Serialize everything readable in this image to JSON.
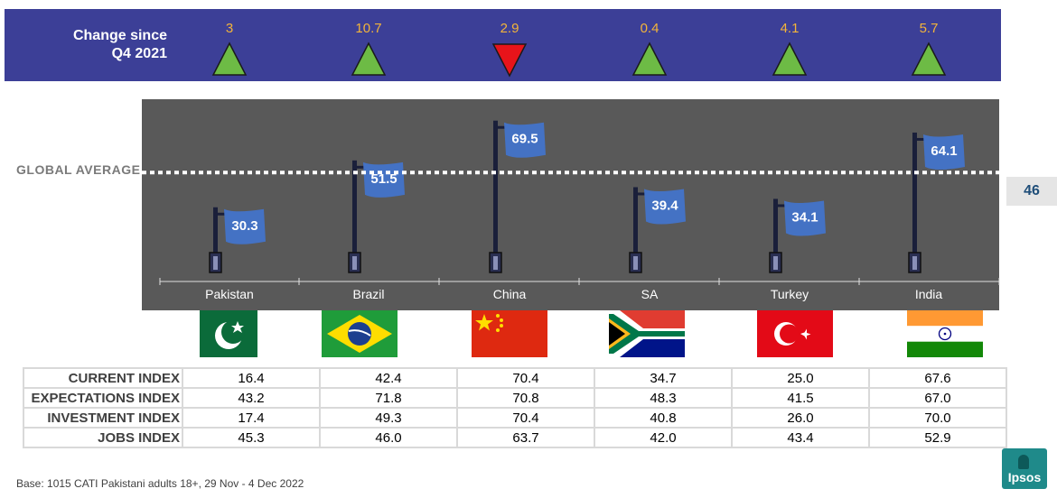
{
  "header": {
    "label_line1": "Change since",
    "label_line2": "Q4 2021",
    "changes": [
      {
        "value": "3",
        "direction": "up"
      },
      {
        "value": "10.7",
        "direction": "up"
      },
      {
        "value": "2.9",
        "direction": "down"
      },
      {
        "value": "0.4",
        "direction": "up"
      },
      {
        "value": "4.1",
        "direction": "up"
      },
      {
        "value": "5.7",
        "direction": "up"
      }
    ]
  },
  "colors": {
    "header_bg": "#3c3f97",
    "change_value": "#f3b43a",
    "up_triangle": "#6dbb45",
    "down_triangle": "#e8141a",
    "chart_bg": "#595959",
    "flag_blue": "#4472c4",
    "pole": "#1a1f3a"
  },
  "global_average": {
    "label": "GLOBAL AVERAGE",
    "value": "46"
  },
  "chart_data": {
    "type": "bar",
    "categories": [
      "Pakistan",
      "Brazil",
      "China",
      "SA",
      "Turkey",
      "India"
    ],
    "values": [
      30.3,
      51.5,
      69.5,
      39.4,
      34.1,
      64.1
    ],
    "value_labels": [
      "30.3",
      "51.5",
      "69.5",
      "39.4",
      "34.1",
      "64.1"
    ],
    "reference_line": 46,
    "ylim": [
      0,
      80
    ],
    "grid": false,
    "legend": "none",
    "mark_style": "flag on pole"
  },
  "flags": [
    "pakistan",
    "brazil",
    "china",
    "south-africa",
    "turkey",
    "india"
  ],
  "table": {
    "rows": [
      {
        "label": "CURRENT INDEX",
        "values": [
          "16.4",
          "42.4",
          "70.4",
          "34.7",
          "25.0",
          "67.6"
        ]
      },
      {
        "label": "EXPECTATIONS INDEX",
        "values": [
          "43.2",
          "71.8",
          "70.8",
          "48.3",
          "41.5",
          "67.0"
        ]
      },
      {
        "label": "INVESTMENT INDEX",
        "values": [
          "17.4",
          "49.3",
          "70.4",
          "40.8",
          "26.0",
          "70.0"
        ]
      },
      {
        "label": "JOBS INDEX",
        "values": [
          "45.3",
          "46.0",
          "63.7",
          "42.0",
          "43.4",
          "52.9"
        ]
      }
    ]
  },
  "footer": {
    "base_note": "Base: 1015 CATI Pakistani adults 18+, 29 Nov - 4 Dec  2022"
  },
  "logo": {
    "text": "Ipsos"
  }
}
